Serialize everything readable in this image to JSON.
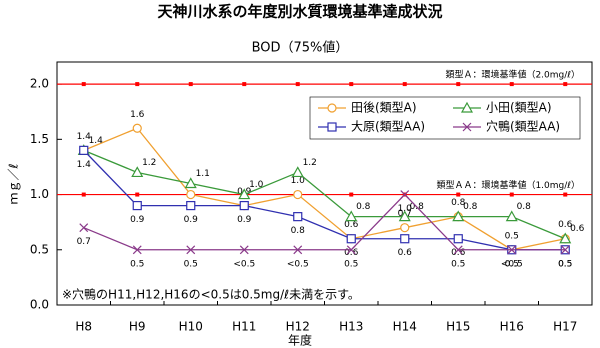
{
  "chart_data": {
    "type": "line",
    "title": "天神川水系の年度別水質環境基準達成状況",
    "subtitle": "BOD（75%値）",
    "x_label": "年度",
    "y_label": "ｍｇ／ℓ",
    "categories": [
      "H8",
      "H9",
      "H10",
      "H11",
      "H12",
      "H13",
      "H14",
      "H15",
      "H16",
      "H17"
    ],
    "ylim": [
      0,
      2.2
    ],
    "yticks": [
      {
        "value": 0,
        "label": "0.0"
      },
      {
        "value": 0.5,
        "label": "0.5"
      },
      {
        "value": 1,
        "label": "1.0"
      },
      {
        "value": 1.5,
        "label": "1.5"
      },
      {
        "value": 2,
        "label": "2.0"
      }
    ],
    "reference_lines": [
      {
        "value": 2,
        "label": "類型Ａ：環境基準値（2.0mg/ℓ）",
        "color": "#ff0000"
      },
      {
        "value": 1,
        "label": "類型ＡＡ：環境基準値（1.0mg/ℓ）",
        "color": "#ff0000"
      }
    ],
    "series": [
      {
        "name": "田後(類型A)",
        "color": "#f0a030",
        "marker": "circle",
        "values": [
          1.4,
          1.6,
          1.0,
          0.9,
          1.0,
          0.6,
          0.7,
          0.8,
          0.5,
          0.6
        ],
        "value_labels": [
          "1.4",
          "1.6",
          null,
          "0.9",
          "1.0",
          "0.6",
          "0.7",
          "0.8",
          "0.5",
          "0.6"
        ]
      },
      {
        "name": "小田(類型A)",
        "color": "#3a9a3a",
        "marker": "triangle",
        "values": [
          1.4,
          1.2,
          1.1,
          1.0,
          1.2,
          0.8,
          0.8,
          0.8,
          0.8,
          0.6
        ],
        "value_labels": [
          "1.4",
          "1.2",
          "1.1",
          "1.0",
          "1.2",
          "0.8",
          "0.8",
          "0.8",
          "0.8",
          "0.6"
        ]
      },
      {
        "name": "大原(類型AA)",
        "color": "#3030b0",
        "marker": "square",
        "values": [
          1.4,
          0.9,
          0.9,
          0.9,
          0.8,
          0.6,
          0.6,
          0.6,
          0.5,
          0.5
        ],
        "value_labels": [
          "1.4",
          "0.9",
          "0.9",
          "0.9",
          "0.8",
          "0.6",
          "0.6",
          "0.6",
          "0.5",
          "0.5"
        ]
      },
      {
        "name": "穴鴨(類型AA)",
        "color": "#8a3a8a",
        "marker": "x",
        "values": [
          0.7,
          0.5,
          0.5,
          0.5,
          0.5,
          0.5,
          1.0,
          0.5,
          0.5,
          0.5
        ],
        "value_labels": [
          "0.7",
          "0.5",
          "0.5",
          "<0.5",
          "<0.5",
          "0.5",
          "1.0",
          "0.5",
          "<0.5",
          "0.5"
        ]
      }
    ],
    "note": "※穴鴨のH11,H12,H16の<0.5は0.5mg/ℓ未満を示す。"
  }
}
